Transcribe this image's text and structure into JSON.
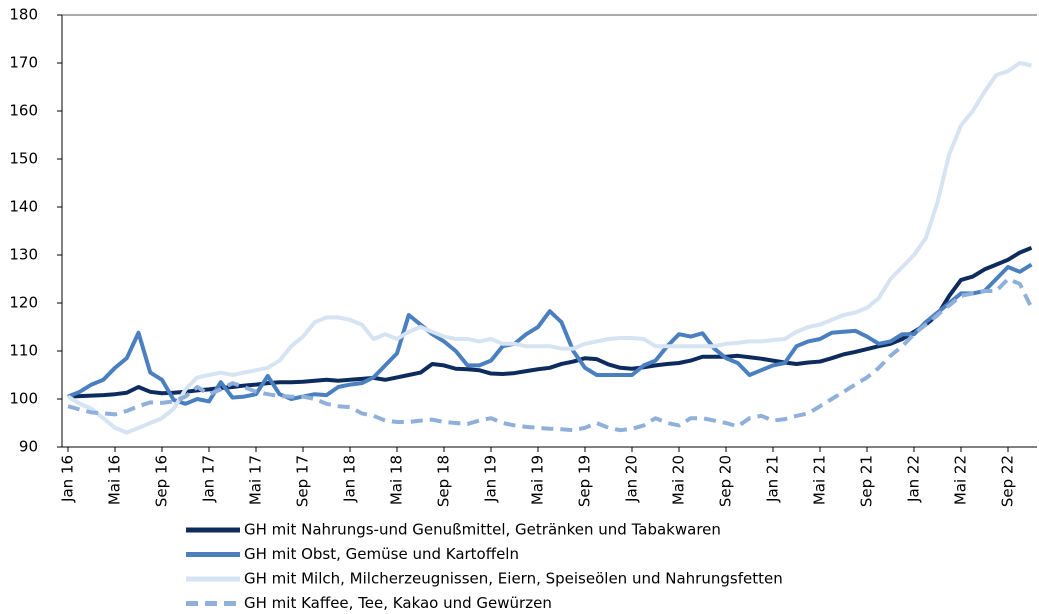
{
  "chart_data": {
    "type": "line",
    "categories": [
      "Jan 16",
      null,
      null,
      null,
      "Mai 16",
      null,
      null,
      null,
      "Sep 16",
      null,
      null,
      null,
      "Jan 17",
      null,
      null,
      null,
      "Mai 17",
      null,
      null,
      null,
      "Sep 17",
      null,
      null,
      null,
      "Jan 18",
      null,
      null,
      null,
      "Mai 18",
      null,
      null,
      null,
      "Sep 18",
      null,
      null,
      null,
      "Jan 19",
      null,
      null,
      null,
      "Mai 19",
      null,
      null,
      null,
      "Sep 19",
      null,
      null,
      null,
      "Jan 20",
      null,
      null,
      null,
      "Mai 20",
      null,
      null,
      null,
      "Sep 20",
      null,
      null,
      null,
      "Jan 21",
      null,
      null,
      null,
      "Mai 21",
      null,
      null,
      null,
      "Sep 21",
      null,
      null,
      null,
      "Jan 22",
      null,
      null,
      null,
      "Mai 22",
      null,
      null,
      null,
      "Sep 22",
      null,
      null
    ],
    "ylim": [
      90,
      180
    ],
    "yticks": [
      90,
      100,
      110,
      120,
      130,
      140,
      150,
      160,
      170,
      180
    ],
    "grid": false,
    "series": [
      {
        "name": "GH mit Nahrungs-und Genußmittel, Getränken und Tabakwaren",
        "color": "#0e2b5e",
        "line_style": "solid",
        "values": [
          100.5,
          100.6,
          100.7,
          100.8,
          101,
          101.3,
          102.5,
          101.5,
          101.2,
          101.3,
          101.5,
          101.8,
          102,
          102.3,
          102.5,
          102.8,
          103,
          103.3,
          103.5,
          103.5,
          103.6,
          103.8,
          104,
          103.8,
          104,
          104.2,
          104.4,
          104,
          104.5,
          105,
          105.5,
          107.3,
          107,
          106.3,
          106.2,
          106,
          105.3,
          105.2,
          105.4,
          105.8,
          106.2,
          106.5,
          107.3,
          107.8,
          108.5,
          108.3,
          107.2,
          106.5,
          106.3,
          106.6,
          107,
          107.3,
          107.5,
          108,
          108.8,
          108.8,
          108.8,
          109,
          108.7,
          108.4,
          108,
          107.6,
          107.3,
          107.6,
          107.8,
          108.5,
          109.3,
          109.8,
          110.4,
          111,
          111.5,
          112.5,
          114,
          115.5,
          117.5,
          121.5,
          124.8,
          125.5,
          127,
          128,
          129,
          130.5,
          131.5
        ]
      },
      {
        "name": "GH mit Obst, Gemüse und Kartoffeln",
        "color": "#4a7fc0",
        "line_style": "solid",
        "values": [
          100.5,
          101.5,
          103,
          104,
          106.5,
          108.5,
          113.8,
          105.5,
          104,
          99.8,
          99,
          100,
          99.5,
          103.5,
          100.3,
          100.5,
          101,
          104.8,
          101,
          100,
          100.5,
          101,
          100.8,
          102.5,
          103,
          103.3,
          104.5,
          107,
          109.5,
          117.5,
          115.5,
          113.5,
          112,
          110,
          107,
          107,
          108,
          111,
          111.5,
          113.5,
          115,
          118.3,
          116,
          110,
          106.5,
          105,
          105,
          105,
          105,
          107,
          108,
          111,
          113.5,
          113,
          113.7,
          110.5,
          108.5,
          107.5,
          105,
          106,
          107,
          107.5,
          111,
          112,
          112.5,
          113.8,
          114,
          114.2,
          113,
          111.5,
          112,
          113.5,
          113.5,
          116,
          118,
          120,
          122,
          122,
          122.5,
          125,
          127.5,
          126.5,
          128
        ]
      },
      {
        "name": "GH mit Milch, Milcherzeugnissen, Eiern, Speiseölen und Nahrungsfetten",
        "color": "#d6e3f3",
        "line_style": "solid",
        "values": [
          100.5,
          99,
          98,
          96,
          94,
          93,
          94,
          95,
          96,
          98,
          102,
          104.5,
          105,
          105.5,
          105,
          105.5,
          106,
          106.5,
          108,
          111,
          113,
          116,
          117,
          117,
          116.5,
          115.5,
          112.5,
          113.5,
          112.5,
          114,
          115,
          114,
          113,
          112.5,
          112.5,
          112,
          112.5,
          111.5,
          111.5,
          111,
          111,
          111,
          110.5,
          110.5,
          111.5,
          112,
          112.5,
          112.7,
          112.7,
          112.5,
          111,
          111,
          111,
          111,
          111,
          111,
          111.5,
          111.7,
          112,
          112,
          112.3,
          112.5,
          114,
          115,
          115.5,
          116.5,
          117.5,
          118,
          119,
          121,
          125,
          127.5,
          130,
          133.5,
          141,
          151,
          157,
          160,
          164,
          167.5,
          168.3,
          170,
          169.5
        ]
      },
      {
        "name": "GH mit Kaffee, Tee, Kakao und Gewürzen",
        "color": "#8eb0da",
        "line_style": "dashed",
        "values": [
          98.5,
          97.8,
          97.2,
          97,
          96.8,
          97.5,
          98.5,
          99.3,
          99.2,
          99.5,
          100.5,
          102.5,
          101,
          102,
          103.3,
          102.5,
          101.5,
          101,
          100.6,
          100.5,
          100.5,
          100,
          99,
          98.5,
          98.3,
          97,
          96.5,
          95.5,
          95.2,
          95.2,
          95.5,
          95.7,
          95.2,
          95,
          94.8,
          95.5,
          96,
          95,
          94.5,
          94.2,
          94,
          93.8,
          93.7,
          93.5,
          94,
          95,
          94,
          93.5,
          93.8,
          94.5,
          96,
          95,
          94.5,
          96,
          96,
          95.5,
          95,
          94.3,
          96,
          96.5,
          95.5,
          95.8,
          96.5,
          97,
          98.5,
          100,
          101.5,
          103,
          104.5,
          106.5,
          109,
          111,
          113.5,
          115.5,
          117.5,
          119.5,
          121.5,
          122,
          122.5,
          122.5,
          125,
          124,
          119
        ]
      }
    ]
  }
}
